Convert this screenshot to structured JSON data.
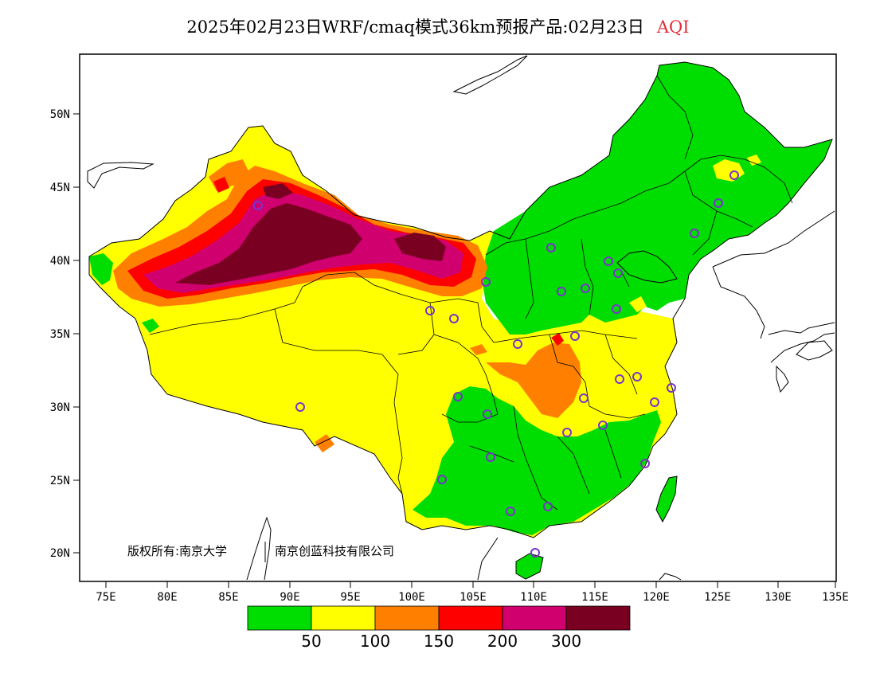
{
  "title": {
    "main": "2025年02月23日WRF/cmaq模式36km预报产品:02月23日",
    "variable": "AQI"
  },
  "copyright": {
    "owner_a": "版权所有:南京大学",
    "owner_b": "南京创蓝科技有限公司"
  },
  "axes": {
    "lon_ticks": [
      "75E",
      "80E",
      "85E",
      "90E",
      "95E",
      "100E",
      "105E",
      "110E",
      "115E",
      "120E",
      "125E",
      "130E",
      "135E"
    ],
    "lat_ticks": [
      "20N",
      "25N",
      "30N",
      "35N",
      "40N",
      "45N",
      "50N"
    ]
  },
  "legend": {
    "colors": [
      "#00dd00",
      "#ffff00",
      "#ff8000",
      "#ff0000",
      "#d0006e",
      "#7a0022"
    ],
    "labels": [
      "50",
      "100",
      "150",
      "200",
      "300"
    ]
  },
  "colors": {
    "good": "#00dd00",
    "moderate": "#ffff00",
    "sensitive": "#ff8000",
    "unhealthy": "#ff0000",
    "very_unhealthy": "#d0006e",
    "hazardous": "#7a0022",
    "station_marker": "#7a33cc"
  }
}
